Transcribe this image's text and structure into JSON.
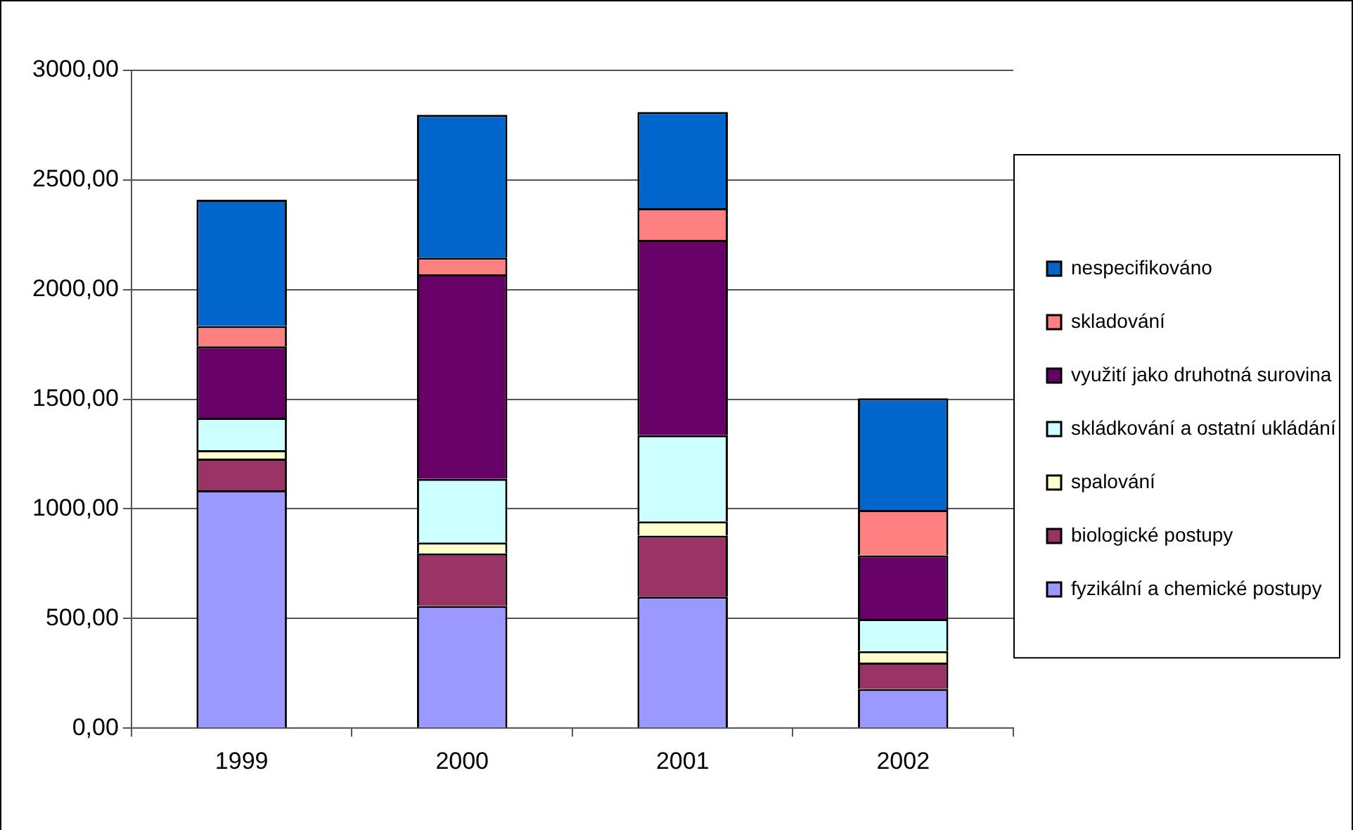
{
  "chart_data": {
    "type": "bar",
    "stacked": true,
    "categories": [
      "1999",
      "2000",
      "2001",
      "2002"
    ],
    "series": [
      {
        "name": "fyzikální a chemické postupy",
        "color": "#9999ff",
        "values": [
          1085,
          557,
          600,
          179
        ]
      },
      {
        "name": "biologické postupy",
        "color": "#993366",
        "values": [
          144,
          240,
          278,
          120
        ]
      },
      {
        "name": "spalování",
        "color": "#ffffcc",
        "values": [
          39,
          50,
          65,
          52
        ]
      },
      {
        "name": "skládkování a ostatní ukládání",
        "color": "#ccffff",
        "values": [
          147,
          290,
          393,
          147
        ]
      },
      {
        "name": "využití jako druhotná surovina",
        "color": "#660066",
        "values": [
          327,
          933,
          891,
          290
        ]
      },
      {
        "name": "skladování",
        "color": "#ff8080",
        "values": [
          92,
          76,
          144,
          207
        ]
      },
      {
        "name": "nespecifikováno",
        "color": "#0066cc",
        "values": [
          576,
          651,
          439,
          509
        ]
      }
    ],
    "ylim": [
      0,
      3000
    ],
    "yticks": [
      {
        "value": 0,
        "label": "0,00"
      },
      {
        "value": 500,
        "label": "500,00"
      },
      {
        "value": 1000,
        "label": "1000,00"
      },
      {
        "value": 1500,
        "label": "1500,00"
      },
      {
        "value": 2000,
        "label": "2000,00"
      },
      {
        "value": 2500,
        "label": "2500,00"
      },
      {
        "value": 3000,
        "label": "3000,00"
      }
    ],
    "grid": "y",
    "legend": "right"
  }
}
